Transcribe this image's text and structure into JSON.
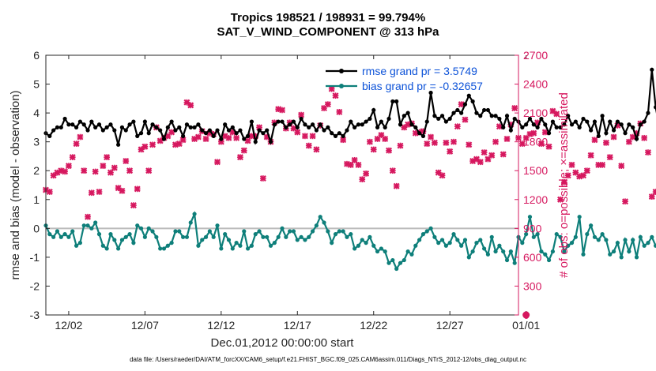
{
  "chart_data": {
    "type": "line",
    "title": "Tropics 198521 / 198931 = 99.794%",
    "subtitle": "SAT_V_WIND_COMPONENT @ 313 hPa",
    "xlabel": "Dec.01,2012 00:00:00 start",
    "ylabel": "rmse and bias (model - observation)",
    "y2label": "# of obs: o=possible; ×=assimilated",
    "xlim": [
      0.5,
      31.5
    ],
    "ylim": [
      -3,
      6
    ],
    "y2lim": [
      0,
      2700
    ],
    "x_ticks": [
      2,
      7,
      12,
      17,
      22,
      27,
      32
    ],
    "x_ticklabels": [
      "12/02",
      "12/07",
      "12/12",
      "12/17",
      "12/22",
      "12/27",
      "01/01"
    ],
    "y_ticks": [
      -3,
      -2,
      -1,
      0,
      1,
      2,
      3,
      4,
      5,
      6
    ],
    "y2_ticks": [
      0,
      300,
      600,
      900,
      1200,
      1500,
      1800,
      2100,
      2400,
      2700
    ],
    "zero_line": 0,
    "legend_position": "top-right",
    "series": [
      {
        "name": "rmse grand pr = 3.5749",
        "color": "#000000",
        "axis": "left",
        "marker": "circle",
        "x_start": 0.5,
        "x_step": 0.25,
        "values": [
          3.3,
          3.2,
          3.4,
          3.5,
          3.5,
          3.8,
          3.6,
          3.6,
          3.5,
          3.7,
          3.6,
          3.4,
          3.7,
          3.5,
          3.6,
          3.4,
          3.5,
          3.6,
          3.4,
          2.9,
          3.5,
          3.4,
          3.6,
          3.7,
          3.2,
          3.3,
          3.7,
          3.3,
          3.6,
          3.5,
          3.4,
          3.1,
          3.5,
          3.7,
          3.4,
          3.5,
          3.2,
          3.6,
          3.5,
          3.5,
          3.6,
          3.4,
          3.3,
          3.4,
          3.2,
          3.4,
          3.1,
          3.6,
          3.4,
          3.5,
          3.3,
          3.4,
          3.1,
          3.2,
          3.7,
          3.0,
          3.4,
          3.3,
          3.4,
          3.0,
          3.6,
          3.7,
          3.7,
          3.5,
          3.6,
          3.7,
          3.5,
          3.8,
          3.6,
          3.5,
          3.6,
          3.4,
          3.6,
          3.4,
          3.5,
          3.3,
          3.2,
          3.3,
          3.2,
          3.4,
          3.7,
          3.5,
          3.6,
          3.6,
          3.7,
          3.8,
          4.1,
          3.5,
          3.7,
          3.5,
          3.8,
          4.4,
          4.4,
          3.6,
          3.9,
          4.0,
          3.6,
          3.5,
          3.3,
          3.2,
          3.7,
          4.7,
          3.9,
          3.8,
          3.9,
          3.7,
          3.8,
          4.0,
          4.1,
          4.0,
          4.3,
          4.6,
          4.4,
          4.0,
          3.9,
          4.1,
          4.1,
          3.9,
          3.9,
          3.8,
          3.5,
          3.9,
          3.4,
          3.8,
          3.7,
          3.5,
          3.6,
          3.8,
          3.6,
          3.5,
          3.8,
          3.6,
          3.3,
          3.7,
          3.5,
          3.5,
          3.6,
          3.9,
          3.6,
          3.7,
          3.5,
          3.8,
          3.7,
          3.4,
          3.7,
          3.2,
          3.9,
          3.3,
          3.7,
          3.4,
          3.7,
          3.6,
          3.3,
          3.6,
          3.5,
          3.1,
          3.6,
          3.7,
          4.0,
          5.5,
          4.2,
          3.5,
          3.4,
          3.5,
          3.2,
          3.4,
          3.3,
          3.2,
          3.4,
          3.6,
          3.8,
          3.2,
          3.7,
          3.7,
          3.3,
          3.5,
          3.7,
          3.6,
          3.4,
          3.4,
          3.6,
          3.4,
          3.2,
          3.0,
          3.1,
          3.2,
          3.2
        ]
      },
      {
        "name": "bias grand pr = -0.32657",
        "color": "#0e7f7a",
        "axis": "left",
        "marker": "circle",
        "x_start": 0.5,
        "x_step": 0.25,
        "values": [
          0.1,
          -0.2,
          -0.3,
          -0.1,
          -0.3,
          -0.2,
          -0.3,
          -0.1,
          -0.6,
          -0.5,
          0.1,
          0.1,
          0.0,
          0.2,
          -0.2,
          -0.6,
          -0.7,
          -0.2,
          -0.4,
          -0.7,
          -0.4,
          -0.3,
          -0.2,
          -0.5,
          0.1,
          0.0,
          -0.3,
          0.0,
          -0.1,
          -0.3,
          -0.7,
          -0.7,
          -0.6,
          -0.5,
          -0.1,
          -0.1,
          -0.3,
          -0.3,
          0.2,
          0.5,
          -0.6,
          -0.4,
          -0.3,
          -0.1,
          -0.3,
          0.1,
          -0.7,
          -0.2,
          -0.4,
          -0.7,
          -0.5,
          -0.6,
          -0.1,
          -0.7,
          -0.6,
          -0.2,
          -0.1,
          -0.3,
          -0.3,
          -0.6,
          -0.5,
          -0.3,
          0.0,
          -0.3,
          -0.1,
          -0.1,
          -0.4,
          -0.3,
          -0.4,
          -0.3,
          -0.1,
          0.1,
          0.4,
          0.2,
          -0.1,
          -0.5,
          -0.2,
          -0.1,
          -0.1,
          -0.3,
          -0.2,
          -0.7,
          -0.6,
          -0.4,
          -0.5,
          -0.3,
          -0.6,
          -0.8,
          -0.7,
          -0.8,
          -1.2,
          -1.1,
          -1.4,
          -1.2,
          -1.1,
          -0.8,
          -0.9,
          -0.6,
          -0.4,
          -0.2,
          -0.1,
          0.0,
          -0.3,
          -0.5,
          -0.4,
          -0.6,
          -0.5,
          -0.2,
          -0.4,
          -0.6,
          -0.4,
          -1.0,
          -0.8,
          -0.5,
          -0.4,
          -0.7,
          -0.9,
          -0.3,
          -0.8,
          -0.6,
          -0.8,
          -1.1,
          -0.8,
          -1.2,
          -0.3,
          -0.5,
          -0.2,
          0.4,
          -0.3,
          -0.2,
          -0.8,
          -0.9,
          -1.1,
          -0.8,
          -0.2,
          -0.3,
          -0.8,
          -0.6,
          -0.5,
          -0.3,
          0.4,
          -0.9,
          -0.2,
          0.1,
          -0.3,
          -0.4,
          -0.2,
          -0.4,
          -0.9,
          -0.8,
          -0.5,
          -1.0,
          -0.4,
          -0.8,
          -0.4,
          -1.0,
          -0.3,
          -0.6,
          -0.5,
          -0.3,
          -0.6,
          -0.5,
          0.3,
          -0.8,
          -0.9,
          -0.2,
          -0.4,
          -0.6,
          -0.8,
          -0.5,
          -0.7,
          0.1,
          -0.2,
          0.1,
          -0.1,
          -0.2,
          0.2
        ]
      },
      {
        "name": "obs assimilated",
        "color": "#d6185f",
        "axis": "right",
        "marker": "x",
        "x_start": 0.5,
        "x_step": 0.25,
        "values": [
          1300,
          1280,
          1450,
          1480,
          1500,
          1490,
          1550,
          1640,
          1780,
          1850,
          1500,
          1020,
          1270,
          1490,
          1280,
          1550,
          1640,
          1480,
          1530,
          1320,
          1290,
          1600,
          1500,
          1140,
          1310,
          1720,
          1750,
          1500,
          1770,
          1950,
          1810,
          1840,
          1860,
          1900,
          1770,
          1780,
          1820,
          2210,
          2180,
          1830,
          1850,
          1910,
          1830,
          1890,
          1880,
          1590,
          1800,
          1860,
          1840,
          1900,
          1840,
          1640,
          1710,
          1810,
          1860,
          1860,
          1950,
          1420,
          1850,
          1800,
          2000,
          2140,
          2130,
          1940,
          2000,
          1940,
          1900,
          2080,
          1860,
          1760,
          1860,
          1720,
          1970,
          2150,
          2190,
          2350,
          2280,
          2110,
          1820,
          1570,
          1560,
          1610,
          1560,
          1410,
          1470,
          1800,
          1720,
          1830,
          1870,
          1830,
          1710,
          1500,
          1340,
          1760,
          1950,
          1980,
          1990,
          1890,
          1900,
          1910,
          1780,
          1850,
          1790,
          1480,
          1450,
          1790,
          1700,
          1800,
          1960,
          2190,
          2030,
          1770,
          1600,
          1620,
          1590,
          1690,
          1620,
          1660,
          1800,
          1960,
          1670,
          1830,
          1980,
          2150,
          1840,
          1780,
          1840,
          1880,
          1890,
          2000,
          1780,
          1900,
          1750,
          2120,
          2090,
          1200,
          1380,
          1450,
          1560,
          1480,
          1440,
          1450,
          1500,
          1660,
          1820,
          1560,
          1560,
          1790,
          1640,
          1850,
          1970,
          1550,
          1180,
          1800,
          1850,
          1890,
          1990,
          1840,
          1690,
          1230,
          1280,
          1080,
          1510,
          1720,
          1590,
          1120,
          2000,
          1760,
          1760,
          1230,
          1520,
          1780,
          1860,
          1740,
          1880,
          1900,
          1810,
          1590,
          1560,
          1610,
          1480,
          1790,
          1340,
          1680,
          1530,
          1200,
          1270,
          1520,
          1460,
          1380,
          1660
        ]
      },
      {
        "name": "obs possible (final)",
        "color": "#d6185f",
        "axis": "right",
        "marker": "circle",
        "points": [
          [
            32,
            0
          ]
        ]
      }
    ]
  },
  "footer": "data file: /Users/raeder/DAI/ATM_forcXX/CAM6_setup/f.e21.FHIST_BGC.f09_025.CAM6assim.011/Diags_NTrS_2012-12/obs_diag_output.nc"
}
